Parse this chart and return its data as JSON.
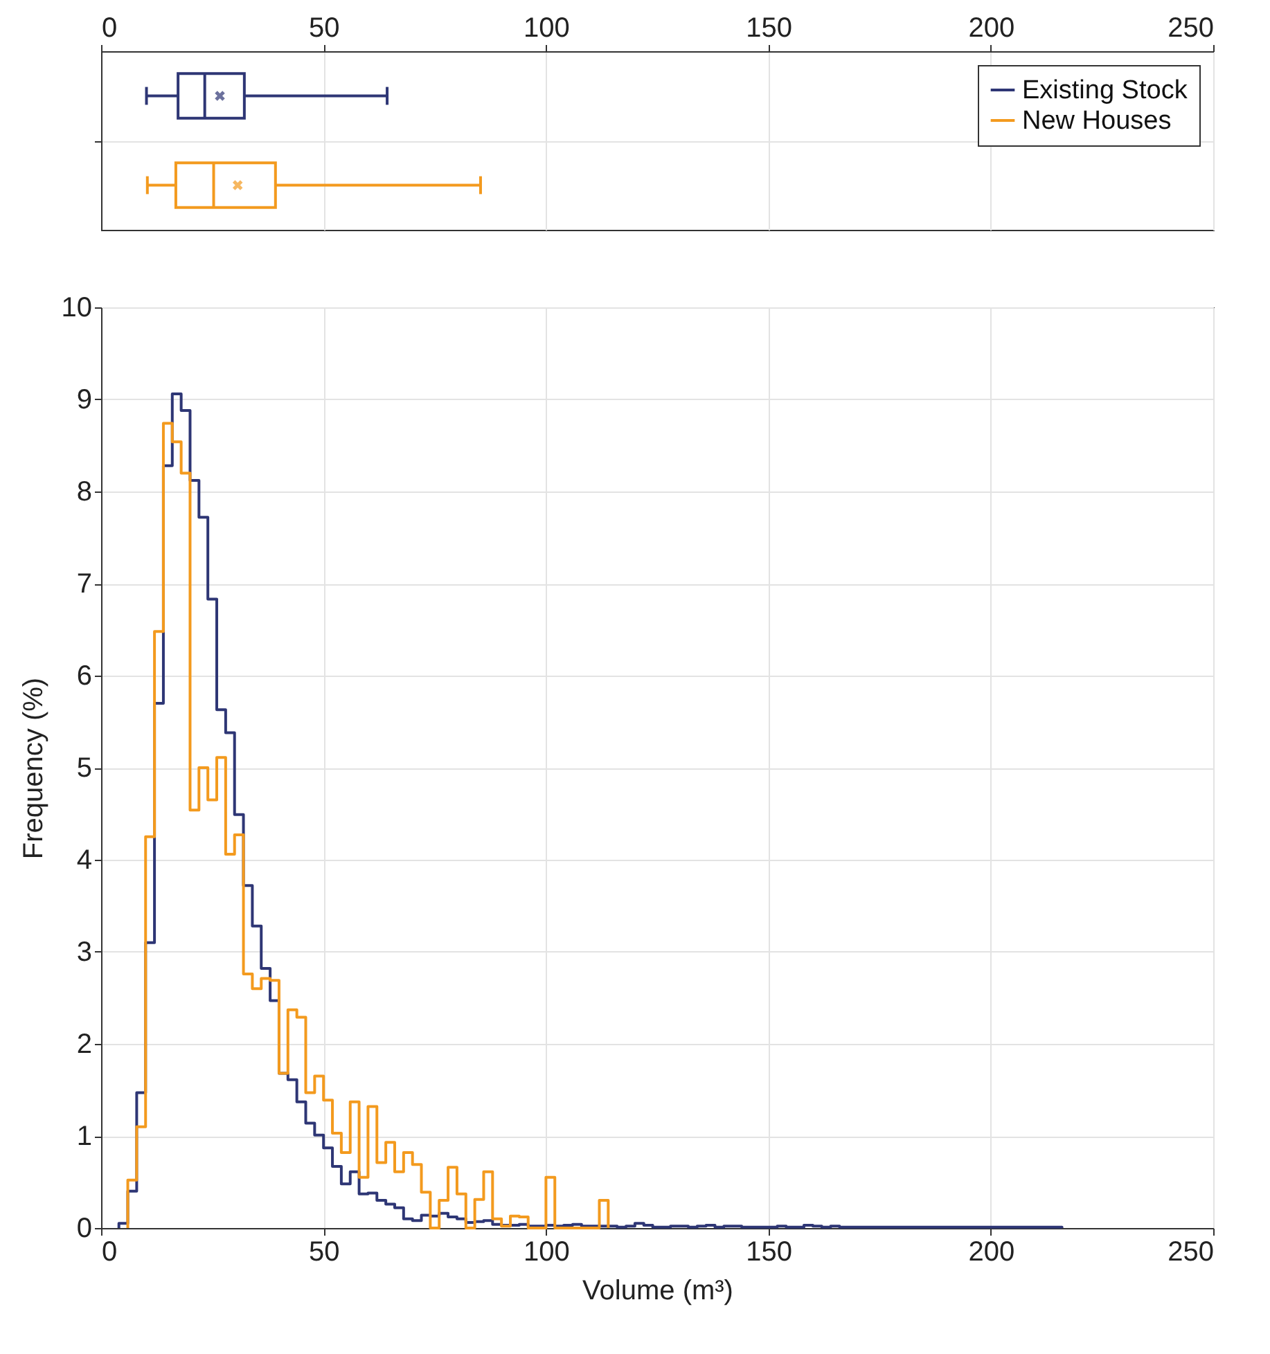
{
  "chart_data": [
    {
      "type": "box",
      "orientation": "horizontal",
      "categories": [
        null,
        null
      ],
      "xlim": [
        0,
        250
      ],
      "xticks": [
        0,
        50,
        100,
        150,
        200,
        250
      ],
      "grid": true,
      "legend": "top right",
      "series": [
        {
          "name": "Existing Stock",
          "color": "#2e3675",
          "boxes": [
            {
              "low": 10.2,
              "q1": 17.3,
              "median": 23.3,
              "q3": 32.2,
              "high": 64.3,
              "mean": 26.7
            },
            null
          ]
        },
        {
          "name": "New Houses",
          "color": "#f39a1e",
          "boxes": [
            null,
            {
              "low": 10.4,
              "q1": 16.8,
              "median": 25.3,
              "q3": 39.2,
              "high": 85.3,
              "mean": 30.7
            }
          ]
        }
      ]
    },
    {
      "type": "histogram",
      "xlabel": "Volume (m³)",
      "ylabel": "Frequency (%)",
      "xlim": [
        0,
        250
      ],
      "xticks": [
        0,
        50,
        100,
        150,
        200,
        250
      ],
      "ylim": [
        0,
        10
      ],
      "yticks": [
        0,
        1,
        2,
        3,
        4,
        5,
        6,
        7,
        8,
        9,
        10
      ],
      "grid": true,
      "bins": [
        4,
        6,
        8,
        10,
        12,
        14,
        16,
        18,
        20,
        22,
        24,
        26,
        28,
        30,
        32,
        34,
        36,
        38,
        40,
        42,
        44,
        46,
        48,
        50,
        52,
        54,
        56,
        58,
        60,
        62,
        64,
        66,
        68,
        70,
        72,
        74,
        76,
        78,
        80,
        82,
        84,
        86,
        88,
        90,
        92,
        94,
        96,
        98,
        100,
        102,
        104,
        106,
        108,
        110,
        112,
        114,
        116,
        118,
        120,
        122,
        124,
        126,
        128,
        130,
        132,
        134,
        136,
        138,
        140,
        142,
        144,
        146,
        148,
        150,
        152,
        154,
        156,
        158,
        160,
        162,
        164,
        166,
        168,
        170,
        172,
        174,
        176,
        178,
        180,
        182,
        184,
        186,
        188,
        190,
        192,
        194,
        196,
        198,
        200,
        202,
        204,
        206,
        208,
        210,
        212,
        214,
        216
      ],
      "series": [
        {
          "color": "#2e3675",
          "values": [
            0.05,
            0.4,
            1.47,
            3.1,
            5.7,
            8.28,
            9.06,
            8.88,
            8.12,
            7.72,
            6.83,
            5.63,
            5.38,
            4.49,
            3.72,
            3.28,
            2.82,
            2.47,
            1.68,
            1.61,
            1.37,
            1.14,
            1.01,
            0.87,
            0.67,
            0.48,
            0.61,
            0.37,
            0.38,
            0.3,
            0.26,
            0.22,
            0.1,
            0.08,
            0.14,
            0.13,
            0.16,
            0.12,
            0.1,
            0.06,
            0.07,
            0.08,
            0.04,
            0.03,
            0.03,
            0.04,
            0.02,
            0.02,
            0.03,
            0.02,
            0.03,
            0.04,
            0.02,
            0.02,
            0.02,
            0.02,
            0.01,
            0.02,
            0.05,
            0.03,
            0.01,
            0.01,
            0.02,
            0.02,
            0.01,
            0.02,
            0.03,
            0.01,
            0.02,
            0.02,
            0.01,
            0.01,
            0.01,
            0.01,
            0.02,
            0.01,
            0.01,
            0.03,
            0.02,
            0.01,
            0.02,
            0.01,
            0.01,
            0.01,
            0.01,
            0.01,
            0.01,
            0.01,
            0.01,
            0.01,
            0.01,
            0.01,
            0.01,
            0.01,
            0.01,
            0.01,
            0.01,
            0.01,
            0.01,
            0.01,
            0.01,
            0.01,
            0.01,
            0.01,
            0.01,
            0.01
          ]
        },
        {
          "color": "#f39a1e",
          "bins": [
            6,
            8,
            10,
            12,
            14,
            16,
            18,
            20,
            22,
            24,
            26,
            28,
            30,
            32,
            34,
            36,
            38,
            40,
            42,
            44,
            46,
            48,
            50,
            52,
            54,
            56,
            58,
            60,
            62,
            64,
            66,
            68,
            70,
            72,
            74,
            76,
            78,
            80,
            82,
            84,
            86,
            88,
            90,
            92,
            94,
            96,
            98,
            100,
            102,
            104,
            106,
            108,
            110,
            112,
            114
          ],
          "values": [
            0.52,
            1.1,
            4.25,
            6.48,
            8.74,
            8.54,
            8.2,
            4.54,
            5.0,
            4.65,
            5.11,
            4.06,
            4.27,
            2.76,
            2.6,
            2.71,
            2.69,
            1.68,
            2.37,
            2.29,
            1.47,
            1.65,
            1.39,
            1.03,
            0.82,
            1.37,
            0.55,
            1.32,
            0.71,
            0.93,
            0.61,
            0.82,
            0.69,
            0.39,
            0,
            0.3,
            0.66,
            0.37,
            0,
            0.31,
            0.61,
            0.1,
            0.02,
            0.13,
            0.12,
            0,
            0,
            0.55,
            0,
            0,
            0,
            0,
            0,
            0.3
          ]
        }
      ]
    }
  ]
}
